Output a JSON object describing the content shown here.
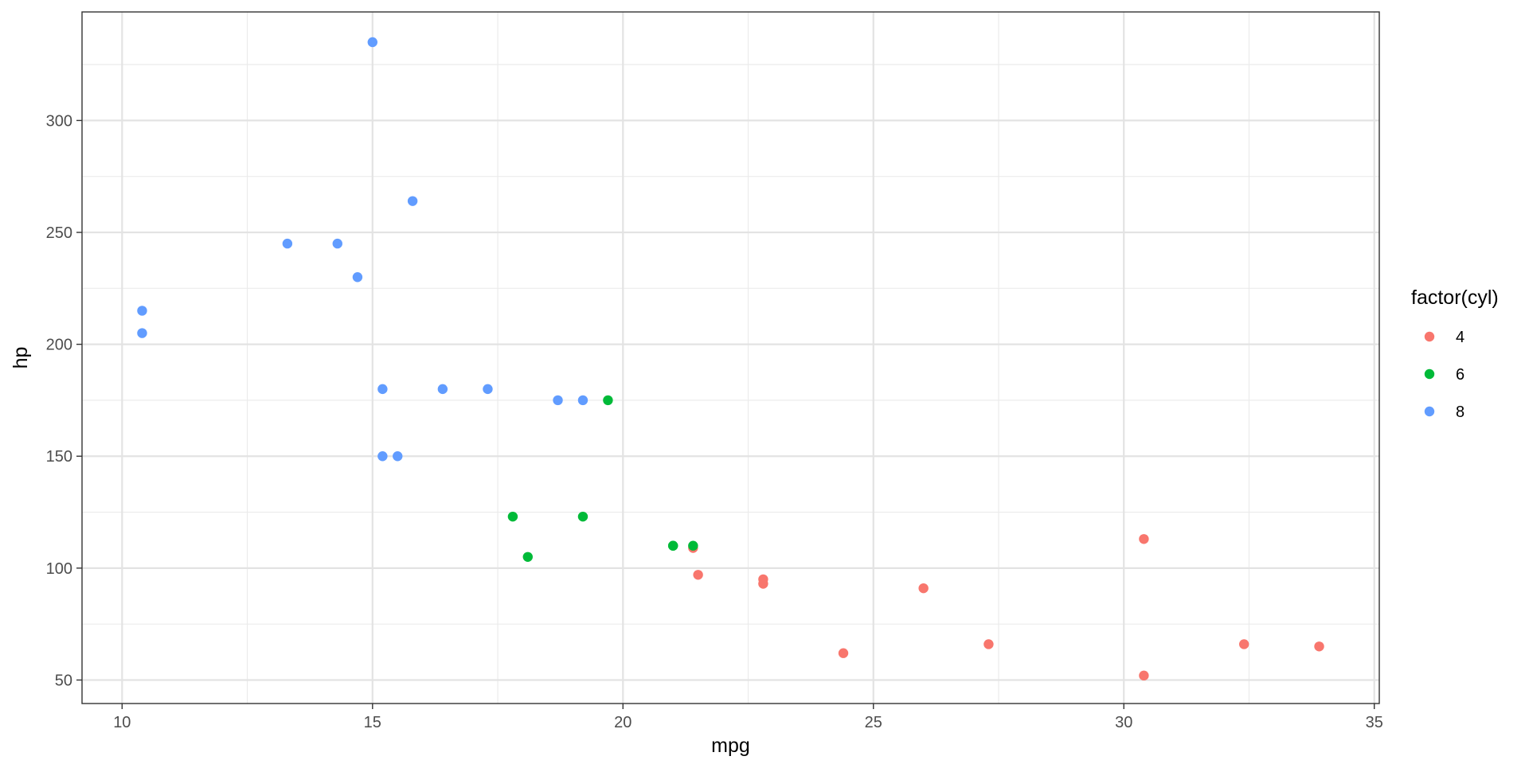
{
  "chart_data": {
    "type": "scatter",
    "title": "",
    "xlabel": "mpg",
    "ylabel": "hp",
    "xlim": [
      9.2,
      35.1
    ],
    "ylim": [
      39.5,
      348.5
    ],
    "xticks": [
      10,
      15,
      20,
      25,
      30,
      35
    ],
    "yticks": [
      50,
      100,
      150,
      200,
      250,
      300
    ],
    "xtick_labels": [
      "10",
      "15",
      "20",
      "25",
      "30",
      "35"
    ],
    "ytick_labels": [
      "50",
      "100",
      "150",
      "200",
      "250",
      "300"
    ],
    "grid": true,
    "legend": {
      "title": "factor(cyl)",
      "position": "right"
    },
    "series": [
      {
        "name": "4",
        "color": "#F8766D",
        "points": [
          [
            22.8,
            93
          ],
          [
            24.4,
            62
          ],
          [
            22.8,
            95
          ],
          [
            32.4,
            66
          ],
          [
            30.4,
            52
          ],
          [
            33.9,
            65
          ],
          [
            21.5,
            97
          ],
          [
            27.3,
            66
          ],
          [
            26.0,
            91
          ],
          [
            30.4,
            113
          ],
          [
            21.4,
            109
          ]
        ]
      },
      {
        "name": "6",
        "color": "#00BA38",
        "points": [
          [
            21.0,
            110
          ],
          [
            21.0,
            110
          ],
          [
            21.4,
            110
          ],
          [
            18.1,
            105
          ],
          [
            19.2,
            123
          ],
          [
            17.8,
            123
          ],
          [
            19.7,
            175
          ]
        ]
      },
      {
        "name": "8",
        "color": "#619CFF",
        "points": [
          [
            18.7,
            175
          ],
          [
            14.3,
            245
          ],
          [
            16.4,
            180
          ],
          [
            17.3,
            180
          ],
          [
            15.2,
            180
          ],
          [
            10.4,
            205
          ],
          [
            10.4,
            215
          ],
          [
            14.7,
            230
          ],
          [
            15.5,
            150
          ],
          [
            15.2,
            150
          ],
          [
            13.3,
            245
          ],
          [
            19.2,
            175
          ],
          [
            15.8,
            264
          ],
          [
            15.0,
            335
          ]
        ]
      }
    ]
  }
}
